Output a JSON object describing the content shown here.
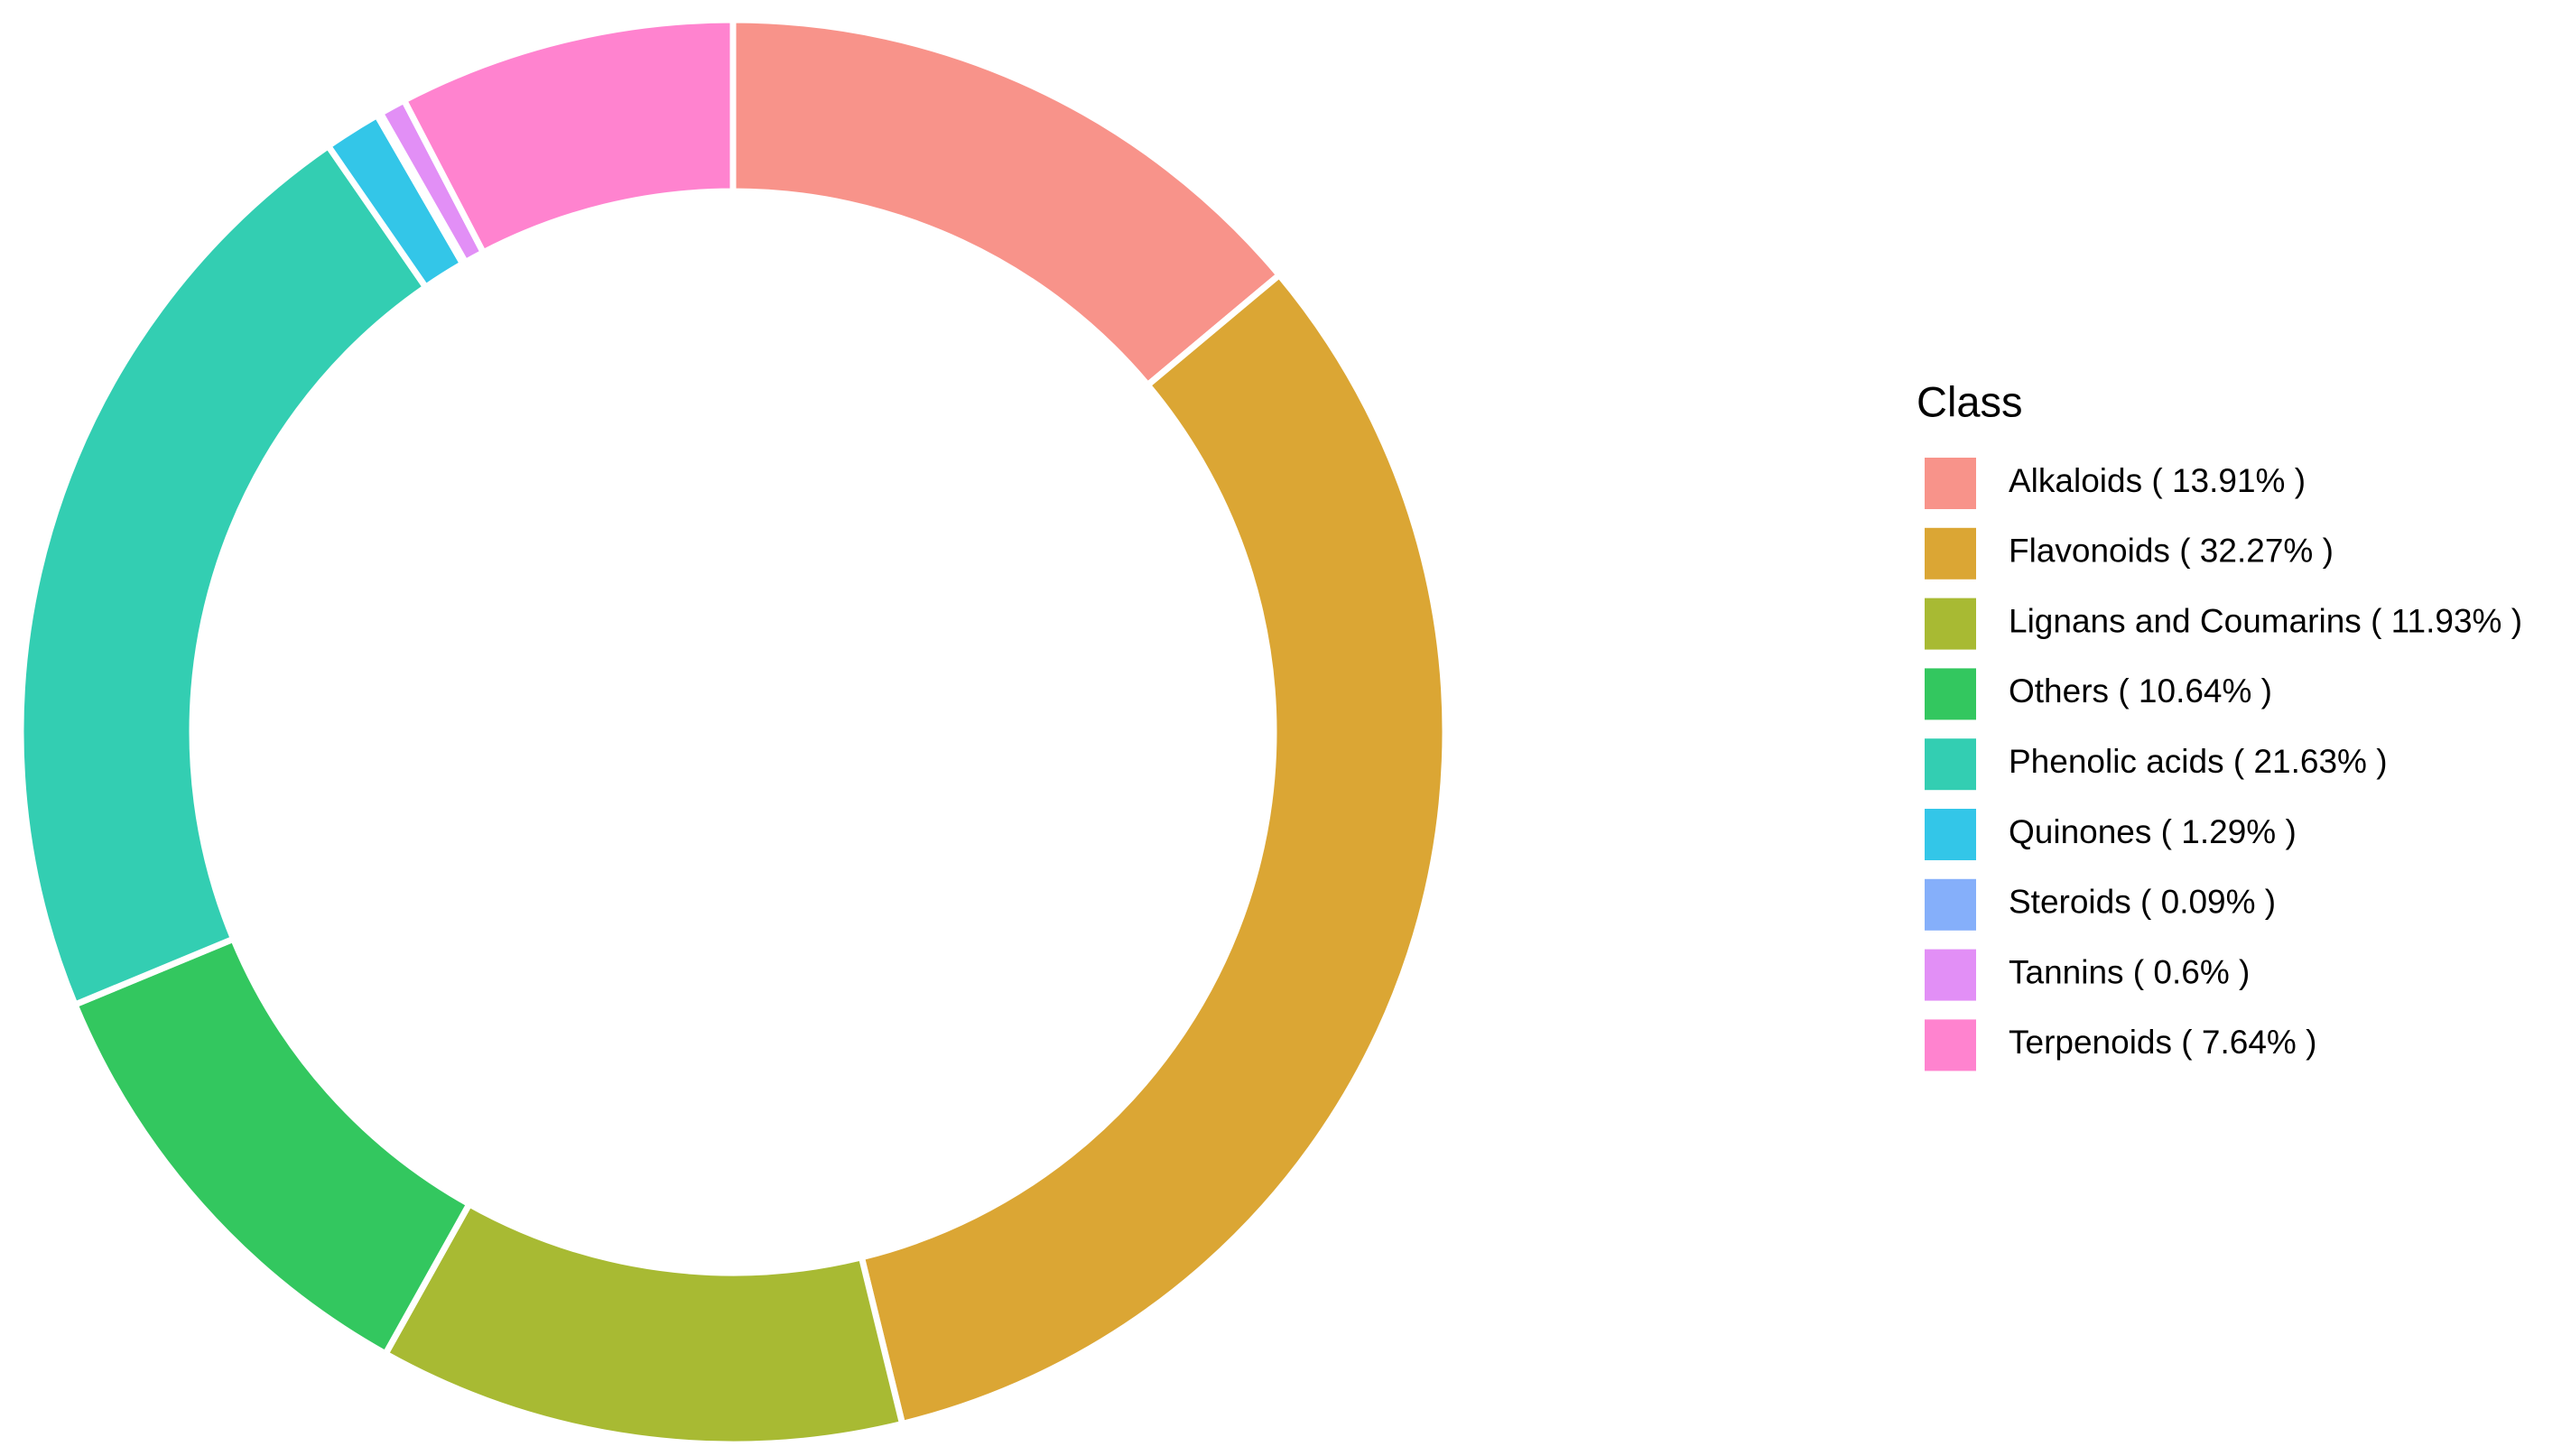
{
  "chart_data": {
    "type": "donut",
    "legend_title": "Class",
    "legend_position": "right",
    "categories": [
      "Alkaloids ( 13.91% )",
      "Flavonoids ( 32.27% )",
      "Lignans and Coumarins ( 11.93% )",
      "Others ( 10.64% )",
      "Phenolic acids ( 21.63% )",
      "Quinones ( 1.29% )",
      "Steroids ( 0.09% )",
      "Tannins ( 0.6% )",
      "Terpenoids ( 7.64% )"
    ],
    "values": [
      13.91,
      32.27,
      11.93,
      10.64,
      21.63,
      1.29,
      0.09,
      0.6,
      7.64
    ],
    "colors": [
      "#F8938A",
      "#DBA634",
      "#A8BA33",
      "#33C75F",
      "#33CEB2",
      "#33C6E8",
      "#85AFFA",
      "#E28FF6",
      "#FF83CF"
    ]
  }
}
